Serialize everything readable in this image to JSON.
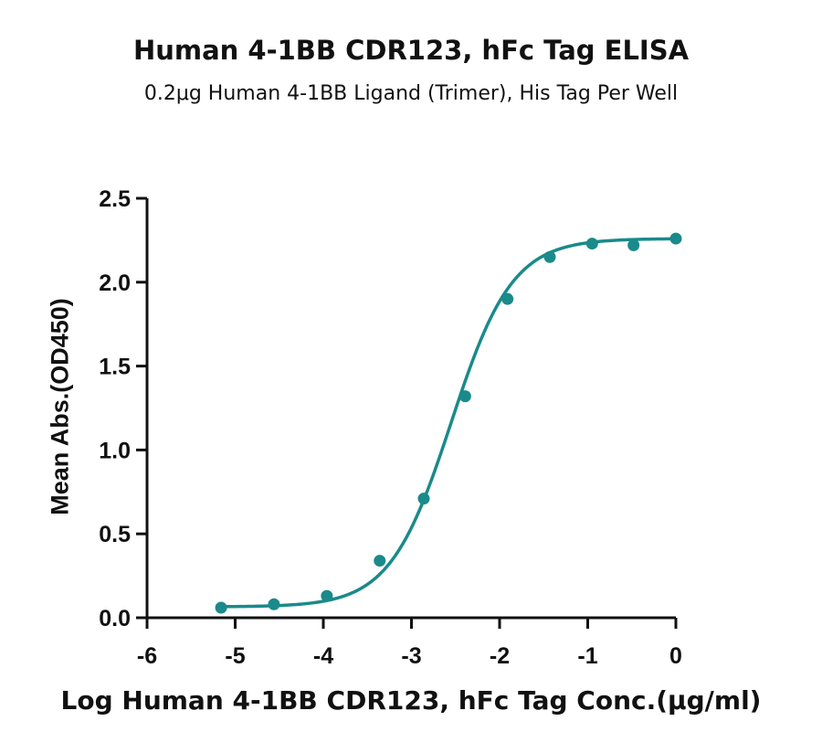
{
  "chart_data": {
    "type": "scatter",
    "title": "Human 4-1BB CDR123, hFc Tag ELISA",
    "subtitle": "0.2μg Human 4-1BB Ligand (Trimer), His Tag Per Well",
    "xlabel": "Log Human 4-1BB CDR123, hFc Tag Conc.(μg/ml)",
    "ylabel": "Mean Abs.(OD450)",
    "xlim": [
      -6,
      0
    ],
    "ylim": [
      0,
      2.5
    ],
    "x_ticks": [
      "-6",
      "-5",
      "-4",
      "-3",
      "-2",
      "-1",
      "0"
    ],
    "y_ticks": [
      "0.0",
      "0.5",
      "1.0",
      "1.5",
      "2.0",
      "2.5"
    ],
    "grid": false,
    "colors": {
      "series": "#1a8a8a",
      "axis": "#111111"
    },
    "series": [
      {
        "points": [
          {
            "x": -5.16,
            "y": 0.06
          },
          {
            "x": -4.56,
            "y": 0.08
          },
          {
            "x": -3.96,
            "y": 0.13
          },
          {
            "x": -3.36,
            "y": 0.34
          },
          {
            "x": -2.86,
            "y": 0.71
          },
          {
            "x": -2.39,
            "y": 1.32
          },
          {
            "x": -1.91,
            "y": 1.9
          },
          {
            "x": -1.43,
            "y": 2.15
          },
          {
            "x": -0.95,
            "y": 2.23
          },
          {
            "x": -0.48,
            "y": 2.22
          },
          {
            "x": 0.0,
            "y": 2.26
          }
        ],
        "fit": {
          "model": "4PL",
          "bottom": 0.065,
          "top": 2.26,
          "log_ec50": -2.55,
          "hill_slope": 1.25
        }
      }
    ]
  }
}
